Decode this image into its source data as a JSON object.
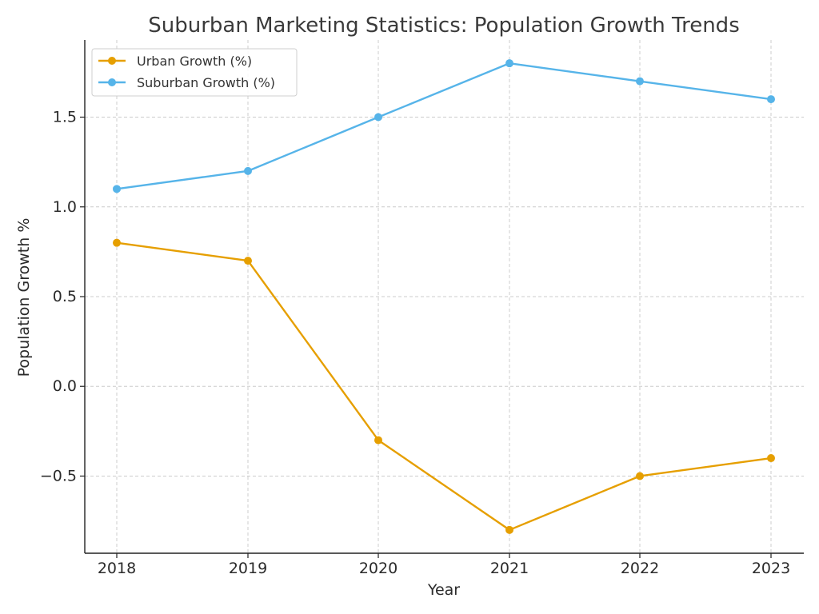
{
  "chart_data": {
    "type": "line",
    "title": "Suburban Marketing Statistics: Population Growth Trends",
    "xlabel": "Year",
    "ylabel": "Population Growth %",
    "x": [
      2018,
      2019,
      2020,
      2021,
      2022,
      2023
    ],
    "x_tick_labels": [
      "2018",
      "2019",
      "2020",
      "2021",
      "2022",
      "2023"
    ],
    "y_ticks": [
      -0.5,
      0.0,
      0.5,
      1.0,
      1.5
    ],
    "y_tick_labels": [
      "−0.5",
      "0.0",
      "0.5",
      "1.0",
      "1.5"
    ],
    "ylim": [
      -0.93,
      1.93
    ],
    "grid": true,
    "legend_position": "top-left",
    "series": [
      {
        "name": "Urban Growth (%)",
        "color": "#E69F00",
        "values": [
          0.8,
          0.7,
          -0.3,
          -0.8,
          -0.5,
          -0.4
        ]
      },
      {
        "name": "Suburban Growth (%)",
        "color": "#56B4E9",
        "values": [
          1.1,
          1.2,
          1.5,
          1.8,
          1.7,
          1.6
        ]
      }
    ]
  }
}
